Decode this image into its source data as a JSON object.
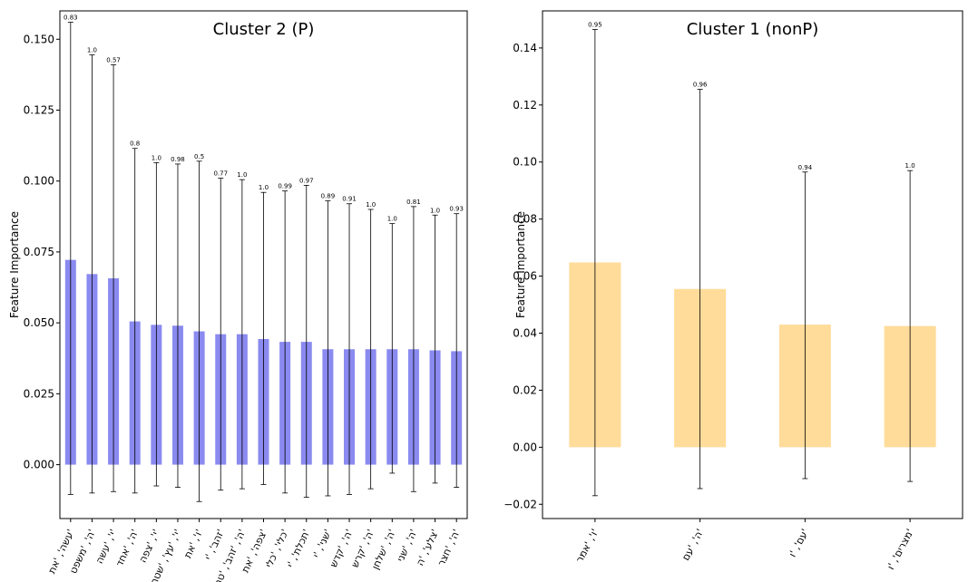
{
  "chart_data": [
    {
      "type": "bar",
      "title": "Cluster 2 (P)",
      "xlabel": "",
      "ylabel": "Feature Importance",
      "ylim": [
        -0.019,
        0.16
      ],
      "yticks": [
        "0.000",
        "0.025",
        "0.050",
        "0.075",
        "0.100",
        "0.125",
        "0.150"
      ],
      "ytick_values": [
        0.0,
        0.025,
        0.05,
        0.075,
        0.1,
        0.125,
        0.15
      ],
      "bar_color": "#8a8af0",
      "categories": [
        "עשה', 'את'",
        "ה', 'משפט'",
        "י', 'עשה'",
        "ה', 'אחד'",
        "י', 'צפה'",
        "י', 'עץ', 'שטה'",
        "ו', 'את'",
        "זהב', 'י'",
        "ה', 'זהב', 'טהר'",
        "צפה', 'את'",
        "כלי', 'כלי'",
        "תכלת', 'י'",
        "שני', 'י'",
        "ה', 'קדש'",
        "ה', 'קרש'",
        "ה', 'שלחן'",
        "ה', 'שני'",
        "צלע', 'ה'",
        "ה', 'חצר'"
      ],
      "values": [
        0.0722,
        0.0672,
        0.0657,
        0.0505,
        0.0493,
        0.049,
        0.047,
        0.046,
        0.046,
        0.0443,
        0.0433,
        0.0433,
        0.0407,
        0.0407,
        0.0407,
        0.0407,
        0.0407,
        0.0403,
        0.04
      ],
      "err_low": [
        -0.0105,
        -0.01,
        -0.0095,
        -0.01,
        -0.0075,
        -0.008,
        -0.013,
        -0.009,
        -0.0085,
        -0.007,
        -0.01,
        -0.0115,
        -0.011,
        -0.0105,
        -0.0085,
        -0.003,
        -0.0095,
        -0.0065,
        -0.008
      ],
      "err_high": [
        0.156,
        0.1445,
        0.141,
        0.1115,
        0.1065,
        0.106,
        0.107,
        0.101,
        0.1005,
        0.096,
        0.0965,
        0.0985,
        0.093,
        0.092,
        0.09,
        0.085,
        0.091,
        0.088,
        0.0885
      ],
      "data_labels": [
        "0.83",
        "1.0",
        "0.57",
        "0.8",
        "1.0",
        "0.98",
        "0.5",
        "0.77",
        "1.0",
        "1.0",
        "0.99",
        "0.97",
        "0.89",
        "0.91",
        "1.0",
        "1.0",
        "0.81",
        "1.0",
        "0.93"
      ]
    },
    {
      "type": "bar",
      "title": "Cluster 1 (nonP)",
      "xlabel": "",
      "ylabel": "Feature Importance",
      "ylim": [
        -0.025,
        0.153
      ],
      "yticks": [
        "−0.02",
        "0.00",
        "0.02",
        "0.04",
        "0.06",
        "0.08",
        "0.10",
        "0.12",
        "0.14"
      ],
      "ytick_values": [
        -0.02,
        0.0,
        0.02,
        0.04,
        0.06,
        0.08,
        0.1,
        0.12,
        0.14
      ],
      "bar_color": "#ffdc9a",
      "categories": [
        "ו', 'אמר'",
        "ה', 'עם'",
        "עם', 'ו'",
        "מצרים', 'ו'"
      ],
      "values": [
        0.0648,
        0.0555,
        0.043,
        0.0425
      ],
      "err_low": [
        -0.017,
        -0.0145,
        -0.011,
        -0.012
      ],
      "err_high": [
        0.1465,
        0.1255,
        0.0965,
        0.097
      ],
      "data_labels": [
        "0.95",
        "0.96",
        "0.94",
        "1.0"
      ]
    }
  ]
}
